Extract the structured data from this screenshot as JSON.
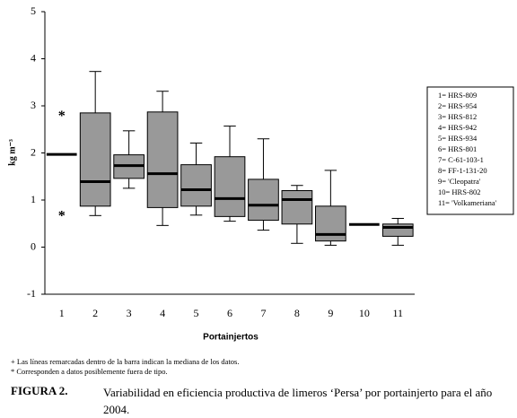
{
  "chart_data": {
    "type": "box",
    "ylabel": "kg m⁻³",
    "xlabel": "Portainjertos",
    "categories": [
      "1",
      "2",
      "3",
      "4",
      "5",
      "6",
      "7",
      "8",
      "9",
      "10",
      "11"
    ],
    "boxes": [
      {
        "median": 1.97
      },
      {
        "min": 0.67,
        "q1": 0.87,
        "median": 1.39,
        "q3": 2.85,
        "max": 3.73
      },
      {
        "min": 1.25,
        "q1": 1.46,
        "median": 1.73,
        "q3": 1.96,
        "max": 2.47
      },
      {
        "min": 0.46,
        "q1": 0.84,
        "median": 1.56,
        "q3": 2.87,
        "max": 3.31
      },
      {
        "min": 0.68,
        "q1": 0.87,
        "median": 1.22,
        "q3": 1.75,
        "max": 2.21
      },
      {
        "min": 0.55,
        "q1": 0.65,
        "median": 1.03,
        "q3": 1.92,
        "max": 2.57
      },
      {
        "min": 0.36,
        "q1": 0.57,
        "median": 0.89,
        "q3": 1.44,
        "max": 2.3
      },
      {
        "min": 0.08,
        "q1": 0.49,
        "median": 1.01,
        "q3": 1.2,
        "max": 1.31
      },
      {
        "min": 0.04,
        "q1": 0.13,
        "median": 0.27,
        "q3": 0.87,
        "max": 1.63
      },
      {
        "median": 0.48
      },
      {
        "min": 0.04,
        "q1": 0.23,
        "median": 0.42,
        "q3": 0.49,
        "max": 0.61
      }
    ],
    "outliers": [
      [
        2.82,
        0.7
      ],
      [],
      [],
      [],
      [],
      [],
      [],
      [],
      [],
      [],
      []
    ],
    "outlier_symbol": "*",
    "color": "#999999",
    "ylim": [
      -1,
      5
    ],
    "yticks": [
      -1,
      0,
      1,
      2,
      3,
      4,
      5
    ],
    "legend": [
      "1= HRS-809",
      "2= HRS-954",
      "3= HRS-812",
      "4= HRS-942",
      "5= HRS-934",
      "6= HRS-801",
      "7= C-61-103-1",
      "8= FF-1-131-20",
      "9= 'Cleopatra'",
      "10= HRS-802",
      "11= 'Volkameriana'"
    ],
    "notes": [
      "+ Las líneas remarcadas dentro de la barra indican la mediana de los datos.",
      "* Corresponden a datos posiblemente fuera de tipo."
    ],
    "caption": {
      "label": "FIGURA 2.",
      "text": "Variabilidad en eficiencia productiva de limeros ‘Persa’ por portainjerto para el año 2004."
    }
  }
}
